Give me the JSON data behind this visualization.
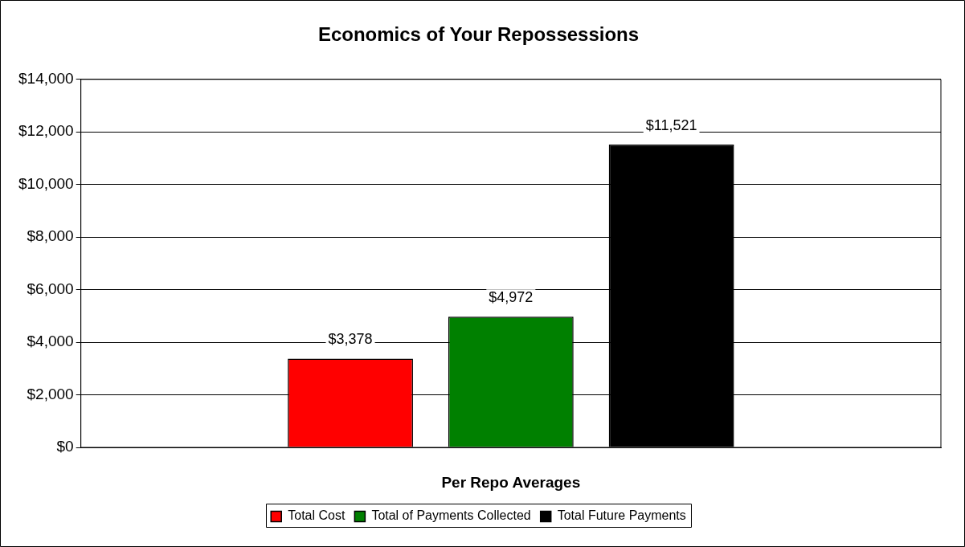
{
  "chart_data": {
    "type": "bar",
    "title": "Economics of Your Repossessions",
    "xlabel": "Per Repo Averages",
    "categories": [
      null
    ],
    "series": [
      {
        "name": "Total Cost",
        "color": "#ff0000",
        "values": [
          3378
        ],
        "value_labels": [
          "$3,378"
        ]
      },
      {
        "name": "Total of Payments Collected",
        "color": "#008000",
        "values": [
          4972
        ],
        "value_labels": [
          "$4,972"
        ]
      },
      {
        "name": "Total Future Payments",
        "color": "#000000",
        "values": [
          11521
        ],
        "value_labels": [
          "$11,521"
        ]
      }
    ],
    "ylim": [
      0,
      14000
    ],
    "yticks": [
      {
        "value": 0,
        "label": "$0"
      },
      {
        "value": 2000,
        "label": "$2,000"
      },
      {
        "value": 4000,
        "label": "$4,000"
      },
      {
        "value": 6000,
        "label": "$6,000"
      },
      {
        "value": 8000,
        "label": "$8,000"
      },
      {
        "value": 10000,
        "label": "$10,000"
      },
      {
        "value": 12000,
        "label": "$12,000"
      },
      {
        "value": 14000,
        "label": "$14,000"
      }
    ],
    "grid": "y",
    "legend": "bottom"
  }
}
